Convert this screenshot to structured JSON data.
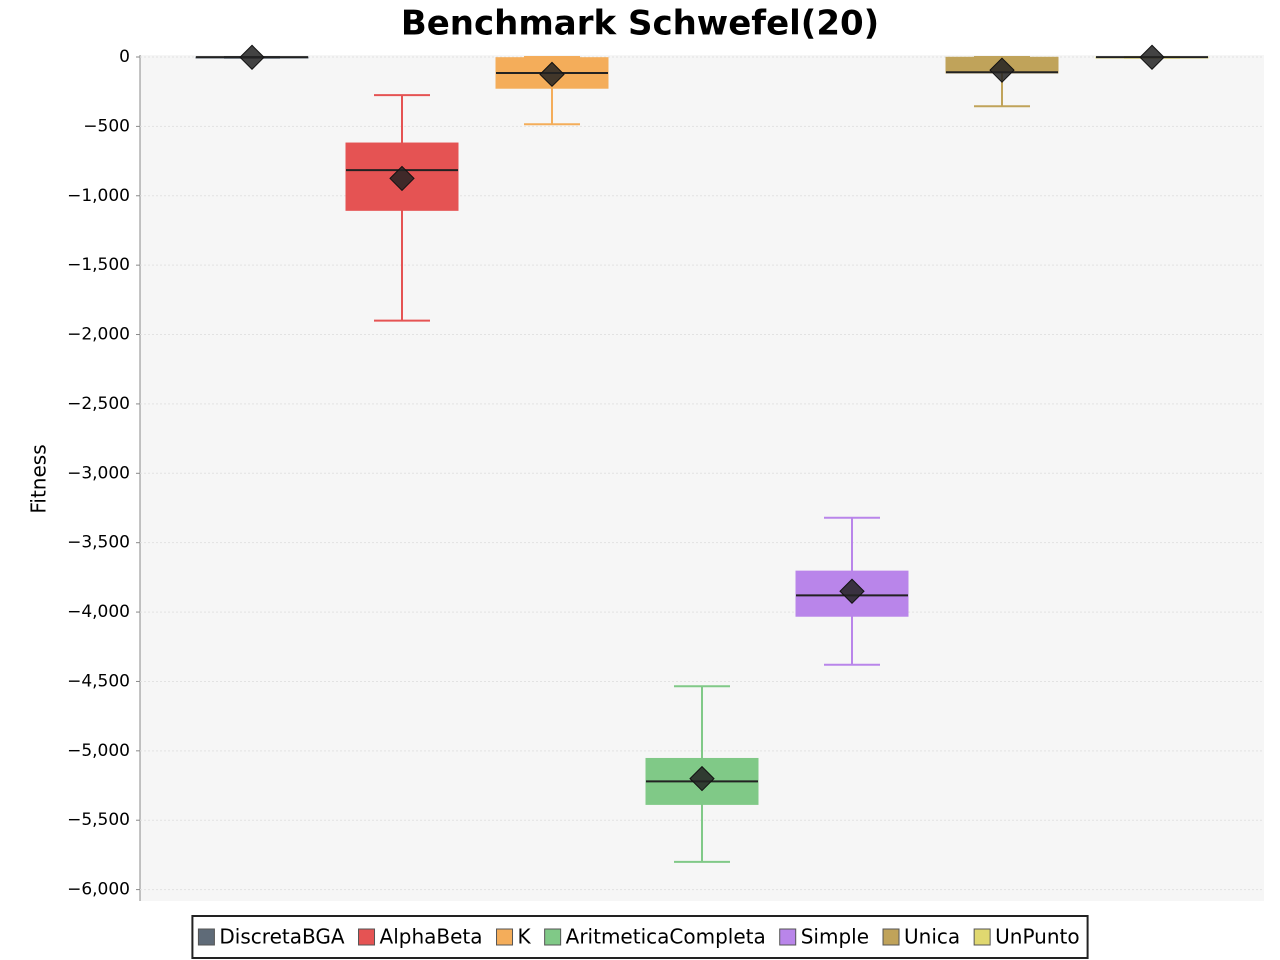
{
  "chart_data": {
    "type": "box",
    "title": "Benchmark Schwefel(20)",
    "y_label": "Fitness",
    "ylim": [
      -6080,
      0
    ],
    "yticks": [
      {
        "value": -6000,
        "label": "−6,000"
      },
      {
        "value": -5500,
        "label": "−5,500"
      },
      {
        "value": -5000,
        "label": "−5,000"
      },
      {
        "value": -4500,
        "label": "−4,500"
      },
      {
        "value": -4000,
        "label": "−4,000"
      },
      {
        "value": -3500,
        "label": "−3,500"
      },
      {
        "value": -3000,
        "label": "−3,000"
      },
      {
        "value": -2500,
        "label": "−2,500"
      },
      {
        "value": -2000,
        "label": "−2,000"
      },
      {
        "value": -1500,
        "label": "−1,500"
      },
      {
        "value": -1000,
        "label": "−1,000"
      },
      {
        "value": -500,
        "label": "−500"
      },
      0
    ],
    "grid": true,
    "legend": "bottom",
    "series": [
      {
        "name": "DiscretaBGA",
        "color": "#5f6b78",
        "min": -5,
        "q1": -3,
        "median": -1,
        "q3": 0,
        "max": 0,
        "mean": -2
      },
      {
        "name": "AlphaBeta",
        "color": "#e55353",
        "min": -1900,
        "q1": -1105,
        "median": -815,
        "q3": -620,
        "max": -275,
        "mean": -875
      },
      {
        "name": "K",
        "color": "#f4ad5a",
        "min": -485,
        "q1": -225,
        "median": -115,
        "q3": -5,
        "max": 0,
        "mean": -125
      },
      {
        "name": "AritmeticaCompleta",
        "color": "#80c987",
        "min": -5800,
        "q1": -5386,
        "median": -5220,
        "q3": -5055,
        "max": -4535,
        "mean": -5200
      },
      {
        "name": "Simple",
        "color": "#b985ea",
        "min": -4380,
        "q1": -4030,
        "median": -3880,
        "q3": -3705,
        "max": -3320,
        "mean": -3850
      },
      {
        "name": "Unica",
        "color": "#c0a35a",
        "min": -355,
        "q1": -115,
        "median": -110,
        "q3": -2,
        "max": 0,
        "mean": -95
      },
      {
        "name": "UnPunto",
        "color": "#e0d870",
        "min": -5,
        "q1": -3,
        "median": -1,
        "q3": 0,
        "max": 0,
        "mean": -2
      }
    ]
  }
}
